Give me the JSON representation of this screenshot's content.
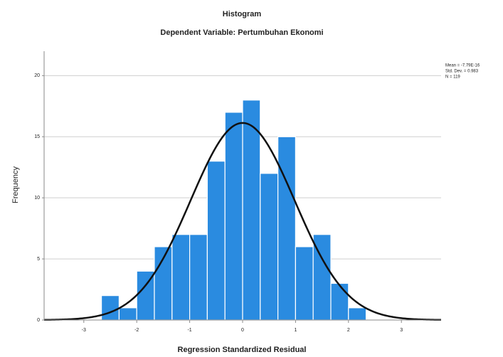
{
  "chart_data": {
    "type": "histogram",
    "title": "Histogram",
    "subtitle": "Dependent Variable: Pertumbuhan Ekonomi",
    "x_label": "Regression Standardized Residual",
    "y_label": "Frequency",
    "bins": [
      -2.667,
      -2.333,
      -2,
      -1.667,
      -1.333,
      -1,
      -0.667,
      -0.333,
      0,
      0.333,
      0.667,
      1,
      1.333,
      1.667,
      2,
      2.333
    ],
    "values": [
      2,
      1,
      4,
      6,
      7,
      7,
      13,
      17,
      18,
      12,
      15,
      6,
      7,
      3,
      1
    ],
    "color": "#2a8be0",
    "curve_color": "#111111",
    "xlim": [
      -3.75,
      3.75
    ],
    "xticks": [
      -3,
      -2,
      -1,
      0,
      1,
      2,
      3
    ],
    "ylim": [
      0,
      22
    ],
    "yticks": [
      0,
      5,
      10,
      15,
      20
    ],
    "grid": true,
    "stats": [
      {
        "label": "Mean = -7.79E-16",
        "value": -7.79e-16
      },
      {
        "label": "Std. Dev. = 0.983",
        "value": 0.983
      },
      {
        "label": "N = 119",
        "value": 119
      }
    ]
  }
}
